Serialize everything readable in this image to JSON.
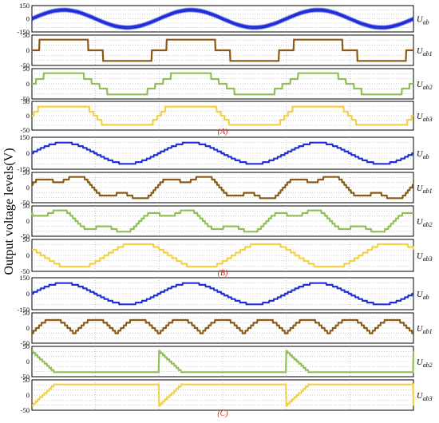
{
  "figure": {
    "ylabel": "Output voltage levels(V)"
  },
  "colors": {
    "Uab": "#1f2ed6",
    "Uab1": "#8a5a14",
    "Uab2": "#8fbf55",
    "Uab3": "#f5cf46",
    "panel_label": "#d8231a",
    "grid": "#9a9a9a"
  },
  "chart_data": [
    {
      "type": "line",
      "group": "(A)",
      "panels": [
        {
          "signal": "Uab",
          "label": "Uab",
          "subscript": "ab",
          "ylim": [
            -150,
            150
          ],
          "yticks": [
            150,
            0,
            -150
          ],
          "waveform": "sine_with_ripple",
          "amplitude": 100,
          "cycles": 3,
          "ripple": 18
        },
        {
          "signal": "Uab1",
          "label": "Uab1",
          "subscript": "ab1",
          "ylim": [
            -50,
            50
          ],
          "yticks": [
            50,
            0,
            -50
          ],
          "waveform": "step_chopping",
          "amplitude": 35,
          "cycles": 3
        },
        {
          "signal": "Uab2",
          "label": "Uab2",
          "subscript": "ab2",
          "ylim": [
            -50,
            50
          ],
          "yticks": [
            50,
            0,
            -50
          ],
          "waveform": "square_steps",
          "amplitude": 35,
          "cycles": 3
        },
        {
          "signal": "Uab3",
          "label": "Uab3",
          "subscript": "ab3",
          "ylim": [
            -50,
            50
          ],
          "yticks": [
            50,
            0,
            -50
          ],
          "waveform": "square_steps_wide",
          "amplitude": 35,
          "cycles": 3
        }
      ]
    },
    {
      "type": "line",
      "group": "(B)",
      "panels": [
        {
          "signal": "Uab",
          "label": "Uab",
          "subscript": "ab",
          "ylim": [
            -150,
            150
          ],
          "yticks": [
            150,
            0,
            -150
          ],
          "waveform": "staircase_sine",
          "amplitude": 100,
          "cycles": 3
        },
        {
          "signal": "Uab1",
          "label": "Uab1",
          "subscript": "ab1",
          "ylim": [
            -50,
            50
          ],
          "yticks": [
            50,
            0,
            -50
          ],
          "waveform": "clipped_mixed",
          "amplitude": 35,
          "cycles": 3
        },
        {
          "signal": "Uab2",
          "label": "Uab2",
          "subscript": "ab2",
          "ylim": [
            -50,
            50
          ],
          "yticks": [
            50,
            0,
            -50
          ],
          "waveform": "clipped_mixed_b",
          "amplitude": 35,
          "cycles": 3
        },
        {
          "signal": "Uab3",
          "label": "Uab3",
          "subscript": "ab3",
          "ylim": [
            -50,
            50
          ],
          "yticks": [
            50,
            0,
            -50
          ],
          "waveform": "clipped_mixed_c",
          "amplitude": 35,
          "cycles": 3
        }
      ]
    },
    {
      "type": "line",
      "group": "(C)",
      "panels": [
        {
          "signal": "Uab",
          "label": "Uab",
          "subscript": "ab",
          "ylim": [
            -150,
            150
          ],
          "yticks": [
            150,
            0,
            -150
          ],
          "waveform": "staircase_sine",
          "amplitude": 100,
          "cycles": 3
        },
        {
          "signal": "Uab1",
          "label": "Uab1",
          "subscript": "ab1",
          "ylim": [
            -50,
            50
          ],
          "yticks": [
            50,
            0,
            -50
          ],
          "waveform": "abs_sine_alternating",
          "amplitude": 35,
          "cycles": 3
        },
        {
          "signal": "Uab2",
          "label": "Uab2",
          "subscript": "ab2",
          "ylim": [
            -50,
            50
          ],
          "yticks": [
            50,
            0,
            -50
          ],
          "waveform": "ramp_segments",
          "amplitude": 35,
          "cycles": 3
        },
        {
          "signal": "Uab3",
          "label": "Uab3",
          "subscript": "ab3",
          "ylim": [
            -50,
            50
          ],
          "yticks": [
            50,
            0,
            -50
          ],
          "waveform": "ramp_segments_inverse",
          "amplitude": 35,
          "cycles": 3
        }
      ]
    }
  ]
}
